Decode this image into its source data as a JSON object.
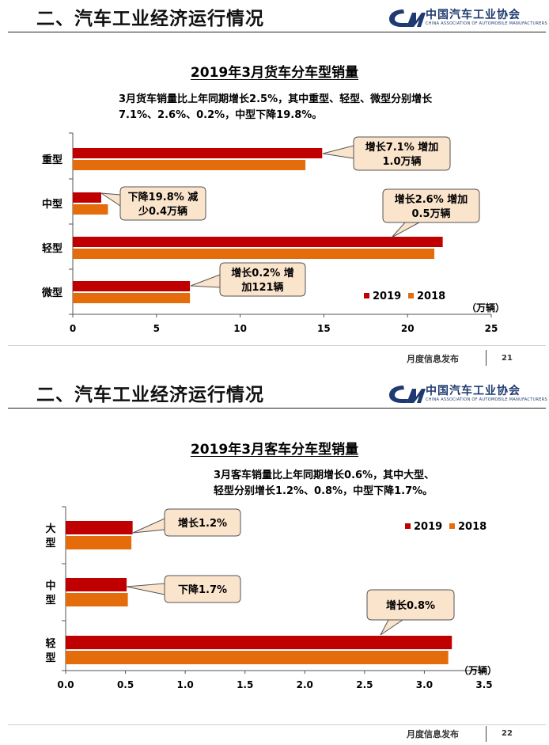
{
  "header": {
    "section_title": "二、汽车工业经济运行情况",
    "logo_text": "中国汽车工业协会",
    "logo_subtext": "CHINA ASSOCIATION OF AUTOMOBILE MANUFACTURERS"
  },
  "footer": {
    "label": "月度信息发布",
    "page1": "21",
    "page2": "22"
  },
  "colors": {
    "series_2019": "#c00000",
    "series_2018": "#e46c0a",
    "callout_fill": "#fbe4cc"
  },
  "chart_data": [
    {
      "type": "bar",
      "orientation": "horizontal",
      "title": "2019年3月货车分车型销量",
      "summary": [
        "3月货车销量比上年同期增长2.5%，其中重型、轻型、微型分别增长",
        "7.1%、2.6%、0.2%，中型下降19.8%。"
      ],
      "categories": [
        "重型",
        "中型",
        "轻型",
        "微型"
      ],
      "series": [
        {
          "name": "2019",
          "values": [
            14.9,
            1.7,
            22.1,
            7.0
          ]
        },
        {
          "name": "2018",
          "values": [
            13.9,
            2.1,
            21.6,
            7.0
          ]
        }
      ],
      "xlim": [
        0,
        25
      ],
      "xticks": [
        "0",
        "5",
        "10",
        "15",
        "20",
        "25"
      ],
      "unit": "（万辆）",
      "legend": "bottom-right",
      "callouts": [
        {
          "lines": [
            "增长7.1% 增加",
            "1.0万辆"
          ]
        },
        {
          "lines": [
            "下降19.8% 减",
            "少0.4万辆"
          ]
        },
        {
          "lines": [
            "增长2.6% 增加",
            "0.5万辆"
          ]
        },
        {
          "lines": [
            "增长0.2% 增",
            "加121辆"
          ]
        }
      ]
    },
    {
      "type": "bar",
      "orientation": "horizontal",
      "title": "2019年3月客车分车型销量",
      "summary": [
        "3月客车销量比上年同期增长0.6%，其中大型、",
        "轻型分别增长1.2%、0.8%，中型下降1.7%。"
      ],
      "categories": [
        "大型",
        "中型",
        "轻型"
      ],
      "series": [
        {
          "name": "2019",
          "values": [
            0.56,
            0.51,
            3.23
          ]
        },
        {
          "name": "2018",
          "values": [
            0.55,
            0.52,
            3.2
          ]
        }
      ],
      "xlim": [
        0,
        3.5
      ],
      "xticks": [
        "0.0",
        "0.5",
        "1.0",
        "1.5",
        "2.0",
        "2.5",
        "3.0",
        "3.5"
      ],
      "unit": "（万辆）",
      "legend": "top-right",
      "callouts": [
        {
          "lines": [
            "增长1.2%"
          ]
        },
        {
          "lines": [
            "下降1.7%"
          ]
        },
        {
          "lines": [
            "增长0.8%"
          ]
        }
      ]
    }
  ]
}
